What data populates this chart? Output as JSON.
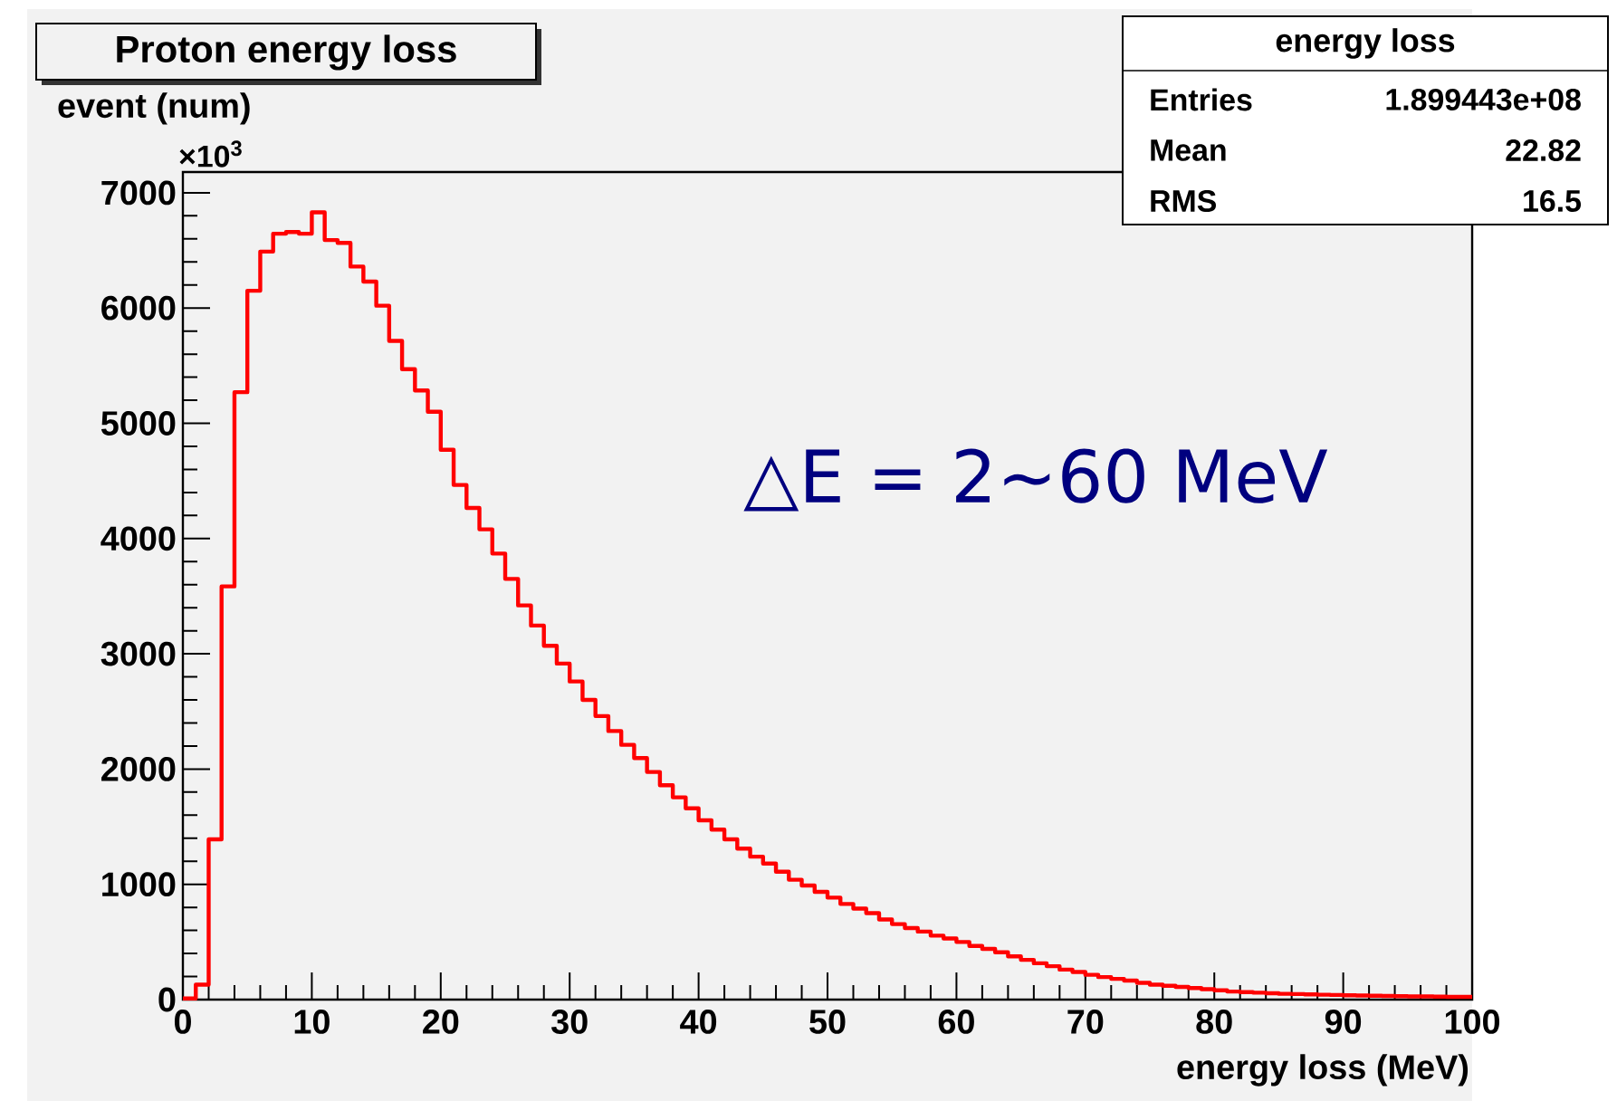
{
  "chart_data": {
    "type": "histogram",
    "title": "Proton energy loss",
    "xlabel": "energy loss (MeV)",
    "ylabel": "event (num)",
    "bins": [
      0,
      1,
      2,
      3,
      4,
      5,
      6,
      7,
      8,
      9,
      10,
      11,
      12,
      13,
      14,
      15,
      16,
      17,
      18,
      19,
      20,
      21,
      22,
      23,
      24,
      25,
      26,
      27,
      28,
      29,
      30,
      31,
      32,
      33,
      34,
      35,
      36,
      37,
      38,
      39,
      40,
      41,
      42,
      43,
      44,
      45,
      46,
      47,
      48,
      49,
      50,
      51,
      52,
      53,
      54,
      55,
      56,
      57,
      58,
      59,
      60,
      61,
      62,
      63,
      64,
      65,
      66,
      67,
      68,
      69,
      70,
      71,
      72,
      73,
      74,
      75,
      76,
      77,
      78,
      79,
      80,
      81,
      82,
      83,
      84,
      85,
      86,
      87,
      88,
      89,
      90,
      91,
      92,
      93,
      94,
      95,
      96,
      97,
      98,
      99,
      100
    ],
    "values": [
      10,
      130,
      1390,
      3585,
      5270,
      6150,
      6490,
      6645,
      6660,
      6645,
      6830,
      6590,
      6565,
      6360,
      6230,
      6020,
      5715,
      5470,
      5285,
      5100,
      4770,
      4465,
      4265,
      4080,
      3870,
      3650,
      3420,
      3245,
      3070,
      2915,
      2760,
      2600,
      2460,
      2330,
      2210,
      2095,
      1975,
      1860,
      1755,
      1660,
      1555,
      1475,
      1390,
      1310,
      1240,
      1180,
      1110,
      1040,
      990,
      935,
      885,
      830,
      790,
      750,
      695,
      655,
      620,
      590,
      555,
      530,
      500,
      465,
      440,
      410,
      375,
      345,
      315,
      290,
      260,
      240,
      215,
      195,
      180,
      165,
      145,
      130,
      120,
      110,
      100,
      90,
      80,
      70,
      65,
      60,
      55,
      50,
      48,
      45,
      42,
      40,
      37,
      35,
      33,
      31,
      30,
      28,
      27,
      25,
      24,
      23
    ],
    "color": "#ff0000",
    "xlim": [
      0,
      100
    ],
    "ylim": [
      0,
      7180
    ],
    "xticks": [
      0,
      10,
      20,
      30,
      40,
      50,
      60,
      70,
      80,
      90,
      100
    ],
    "yticks": [
      0,
      1000,
      2000,
      3000,
      4000,
      5000,
      6000,
      7000
    ],
    "annotations": [
      "×10$^{3}$",
      "energy loss",
      "Entries",
      "1.899443e+08",
      "Mean",
      "22.82",
      "RMS",
      "16.5",
      "△E = 2~60 MeV"
    ]
  }
}
